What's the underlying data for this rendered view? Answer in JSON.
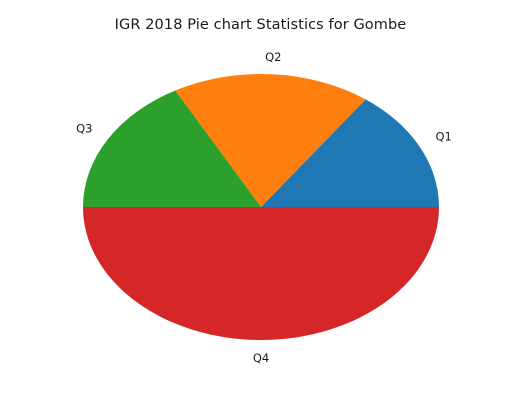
{
  "chart_data": {
    "type": "pie",
    "title": "IGR 2018 Pie chart Statistics for Gombe",
    "categories": [
      "Q1",
      "Q2",
      "Q3",
      "Q4"
    ],
    "values": [
      15,
      18,
      17,
      50
    ],
    "colors": [
      "#1f77b4",
      "#ff7f0e",
      "#2ca02c",
      "#d62728"
    ],
    "start_angle_deg": 0,
    "direction": "counterclockwise",
    "legend": "none"
  }
}
